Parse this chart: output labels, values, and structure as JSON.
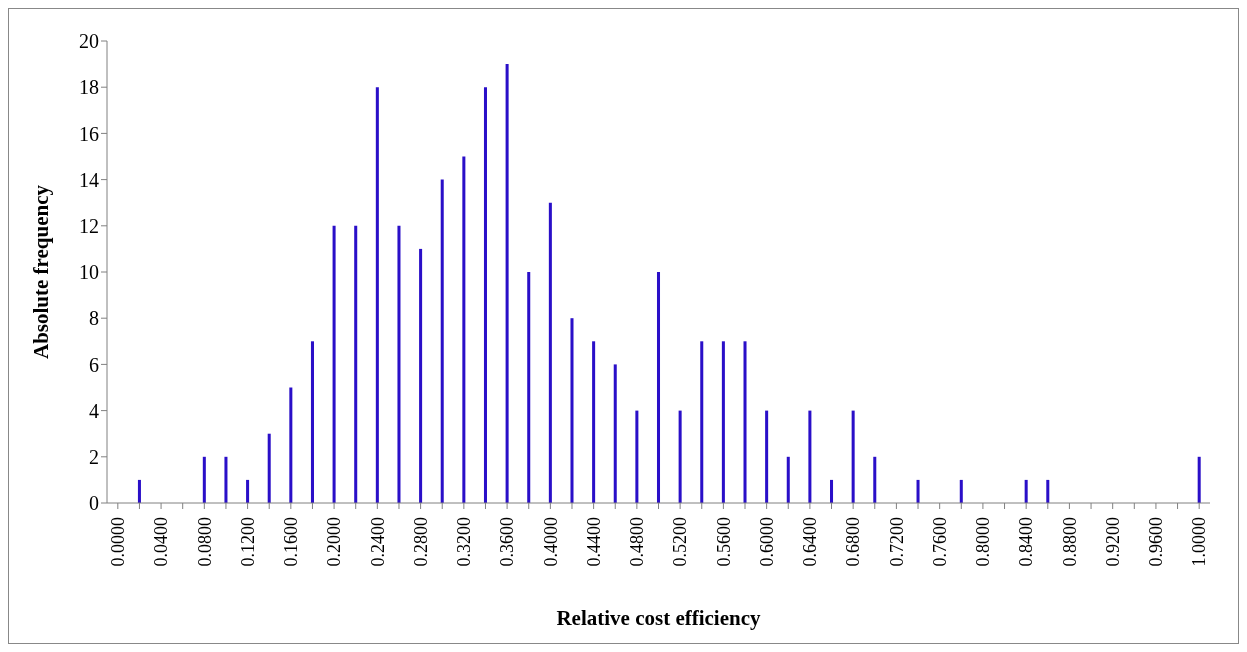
{
  "chart_data": {
    "type": "bar",
    "xlabel": "Relative cost efficiency",
    "ylabel": "Absolute frequency",
    "categories": [
      "0.0000",
      null,
      "0.0400",
      null,
      "0.0800",
      null,
      "0.1200",
      null,
      "0.1600",
      null,
      "0.2000",
      null,
      "0.2400",
      null,
      "0.2800",
      null,
      "0.3200",
      null,
      "0.3600",
      null,
      "0.4000",
      null,
      "0.4400",
      null,
      "0.4800",
      null,
      "0.5200",
      null,
      "0.5600",
      null,
      "0.6000",
      null,
      "0.6400",
      null,
      "0.6800",
      null,
      "0.7200",
      null,
      "0.7600",
      null,
      "0.8000",
      null,
      "0.8400",
      null,
      "0.8800",
      null,
      "0.9200",
      null,
      "0.9600",
      null,
      "1.0000"
    ],
    "values": [
      0,
      1,
      0,
      0,
      2,
      2,
      1,
      3,
      5,
      7,
      12,
      12,
      18,
      12,
      11,
      14,
      15,
      18,
      19,
      10,
      13,
      8,
      7,
      6,
      4,
      10,
      4,
      7,
      7,
      7,
      4,
      2,
      4,
      1,
      4,
      2,
      0,
      1,
      0,
      1,
      0,
      0,
      1,
      1,
      0,
      0,
      0,
      0,
      0,
      0,
      2
    ],
    "color": "#2a0fc8",
    "ylim": [
      0,
      20
    ],
    "yticks": [
      0,
      2,
      4,
      6,
      8,
      10,
      12,
      14,
      16,
      18,
      20
    ],
    "grid": false,
    "legend": false
  }
}
